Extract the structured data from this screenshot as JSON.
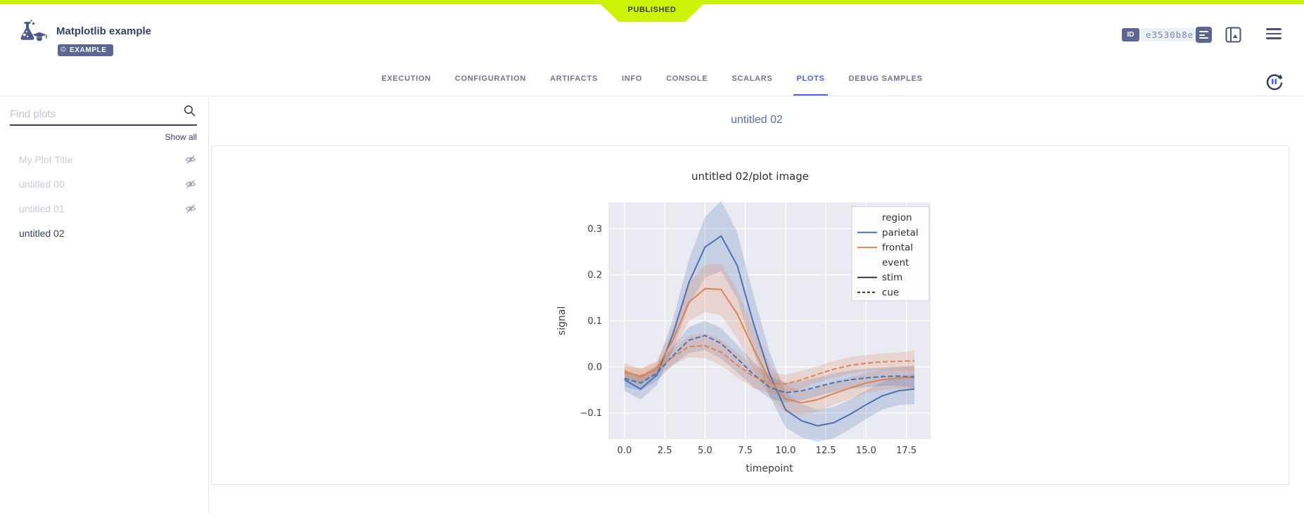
{
  "app": {
    "published_label": "PUBLISHED",
    "accent_lime": "#cdf205",
    "accent_blue": "#4d62e5",
    "slate": "#5c6691"
  },
  "header": {
    "title": "Matplotlib example",
    "badge": "EXAMPLE",
    "id_label": "ID",
    "id_value": "e3530b8e"
  },
  "tabs": [
    {
      "label": "EXECUTION",
      "active": false
    },
    {
      "label": "CONFIGURATION",
      "active": false
    },
    {
      "label": "ARTIFACTS",
      "active": false
    },
    {
      "label": "INFO",
      "active": false
    },
    {
      "label": "CONSOLE",
      "active": false
    },
    {
      "label": "SCALARS",
      "active": false
    },
    {
      "label": "PLOTS",
      "active": true
    },
    {
      "label": "DEBUG SAMPLES",
      "active": false
    }
  ],
  "sidebar": {
    "search_placeholder": "Find plots",
    "show_all": "Show all",
    "items": [
      {
        "label": "My Plot Title",
        "hidden": true,
        "selected": false
      },
      {
        "label": "untitled 00",
        "hidden": true,
        "selected": false
      },
      {
        "label": "untitled 01",
        "hidden": true,
        "selected": false
      },
      {
        "label": "untitled 02",
        "hidden": false,
        "selected": true
      }
    ]
  },
  "main": {
    "group_title": "untitled 02"
  },
  "chart_data": {
    "type": "line",
    "title": "untitled 02/plot image",
    "xlabel": "timepoint",
    "ylabel": "signal",
    "background": "#eaeaf2",
    "grid": "on-white",
    "legend_position": "upper right",
    "xlim": [
      -1.0,
      19.0
    ],
    "ylim": [
      -0.157,
      0.357
    ],
    "xticks": [
      0,
      2.5,
      5,
      7.5,
      10,
      12.5,
      15,
      17.5
    ],
    "yticks": [
      0.3,
      0.2,
      0.1,
      0.0,
      -0.1
    ],
    "x": [
      0,
      1,
      2,
      3,
      4,
      5,
      6,
      7,
      8,
      9,
      10,
      11,
      12,
      13,
      14,
      15,
      16,
      17,
      18
    ],
    "legend": [
      {
        "label": "region",
        "type": "header"
      },
      {
        "label": "parietal",
        "type": "line",
        "color": "#4c72b0"
      },
      {
        "label": "frontal",
        "type": "line",
        "color": "#dd8452"
      },
      {
        "label": "event",
        "type": "header"
      },
      {
        "label": "stim",
        "type": "line",
        "color": "#36373f"
      },
      {
        "label": "cue",
        "type": "dashed",
        "color": "#36373f"
      }
    ],
    "series": [
      {
        "name": "parietal-stim",
        "region": "parietal",
        "event": "stim",
        "color": "#4c72b0",
        "dashed": false,
        "values": [
          -0.028,
          -0.048,
          -0.018,
          0.07,
          0.183,
          0.26,
          0.284,
          0.22,
          0.095,
          -0.015,
          -0.093,
          -0.117,
          -0.128,
          -0.121,
          -0.103,
          -0.082,
          -0.063,
          -0.052,
          -0.048
        ],
        "band": [
          0.024,
          0.023,
          0.022,
          0.032,
          0.05,
          0.066,
          0.076,
          0.072,
          0.062,
          0.048,
          0.038,
          0.036,
          0.035,
          0.034,
          0.032,
          0.031,
          0.03,
          0.031,
          0.033
        ]
      },
      {
        "name": "frontal-stim",
        "region": "frontal",
        "event": "stim",
        "color": "#dd8452",
        "dashed": false,
        "values": [
          -0.01,
          -0.022,
          -0.004,
          0.058,
          0.14,
          0.17,
          0.168,
          0.115,
          0.04,
          -0.028,
          -0.07,
          -0.078,
          -0.071,
          -0.058,
          -0.046,
          -0.035,
          -0.028,
          -0.024,
          -0.023
        ],
        "band": [
          0.019,
          0.018,
          0.017,
          0.026,
          0.041,
          0.051,
          0.056,
          0.053,
          0.046,
          0.036,
          0.029,
          0.027,
          0.026,
          0.024,
          0.023,
          0.022,
          0.022,
          0.023,
          0.026
        ]
      },
      {
        "name": "parietal-cue",
        "region": "parietal",
        "event": "cue",
        "color": "#4c72b0",
        "dashed": true,
        "values": [
          -0.025,
          -0.035,
          -0.014,
          0.024,
          0.058,
          0.068,
          0.051,
          0.018,
          -0.016,
          -0.044,
          -0.056,
          -0.052,
          -0.043,
          -0.034,
          -0.028,
          -0.024,
          -0.021,
          -0.02,
          -0.022
        ],
        "band": [
          0.018,
          0.017,
          0.016,
          0.02,
          0.028,
          0.032,
          0.033,
          0.03,
          0.027,
          0.024,
          0.022,
          0.021,
          0.02,
          0.02,
          0.02,
          0.02,
          0.02,
          0.021,
          0.024
        ]
      },
      {
        "name": "frontal-cue",
        "region": "frontal",
        "event": "cue",
        "color": "#dd8452",
        "dashed": true,
        "values": [
          -0.013,
          -0.019,
          -0.005,
          0.021,
          0.044,
          0.046,
          0.032,
          0.004,
          -0.021,
          -0.035,
          -0.037,
          -0.028,
          -0.016,
          -0.005,
          0.003,
          0.008,
          0.011,
          0.012,
          0.013
        ],
        "band": [
          0.016,
          0.015,
          0.014,
          0.018,
          0.023,
          0.027,
          0.028,
          0.027,
          0.025,
          0.022,
          0.02,
          0.019,
          0.018,
          0.018,
          0.018,
          0.018,
          0.018,
          0.019,
          0.022
        ]
      }
    ]
  }
}
